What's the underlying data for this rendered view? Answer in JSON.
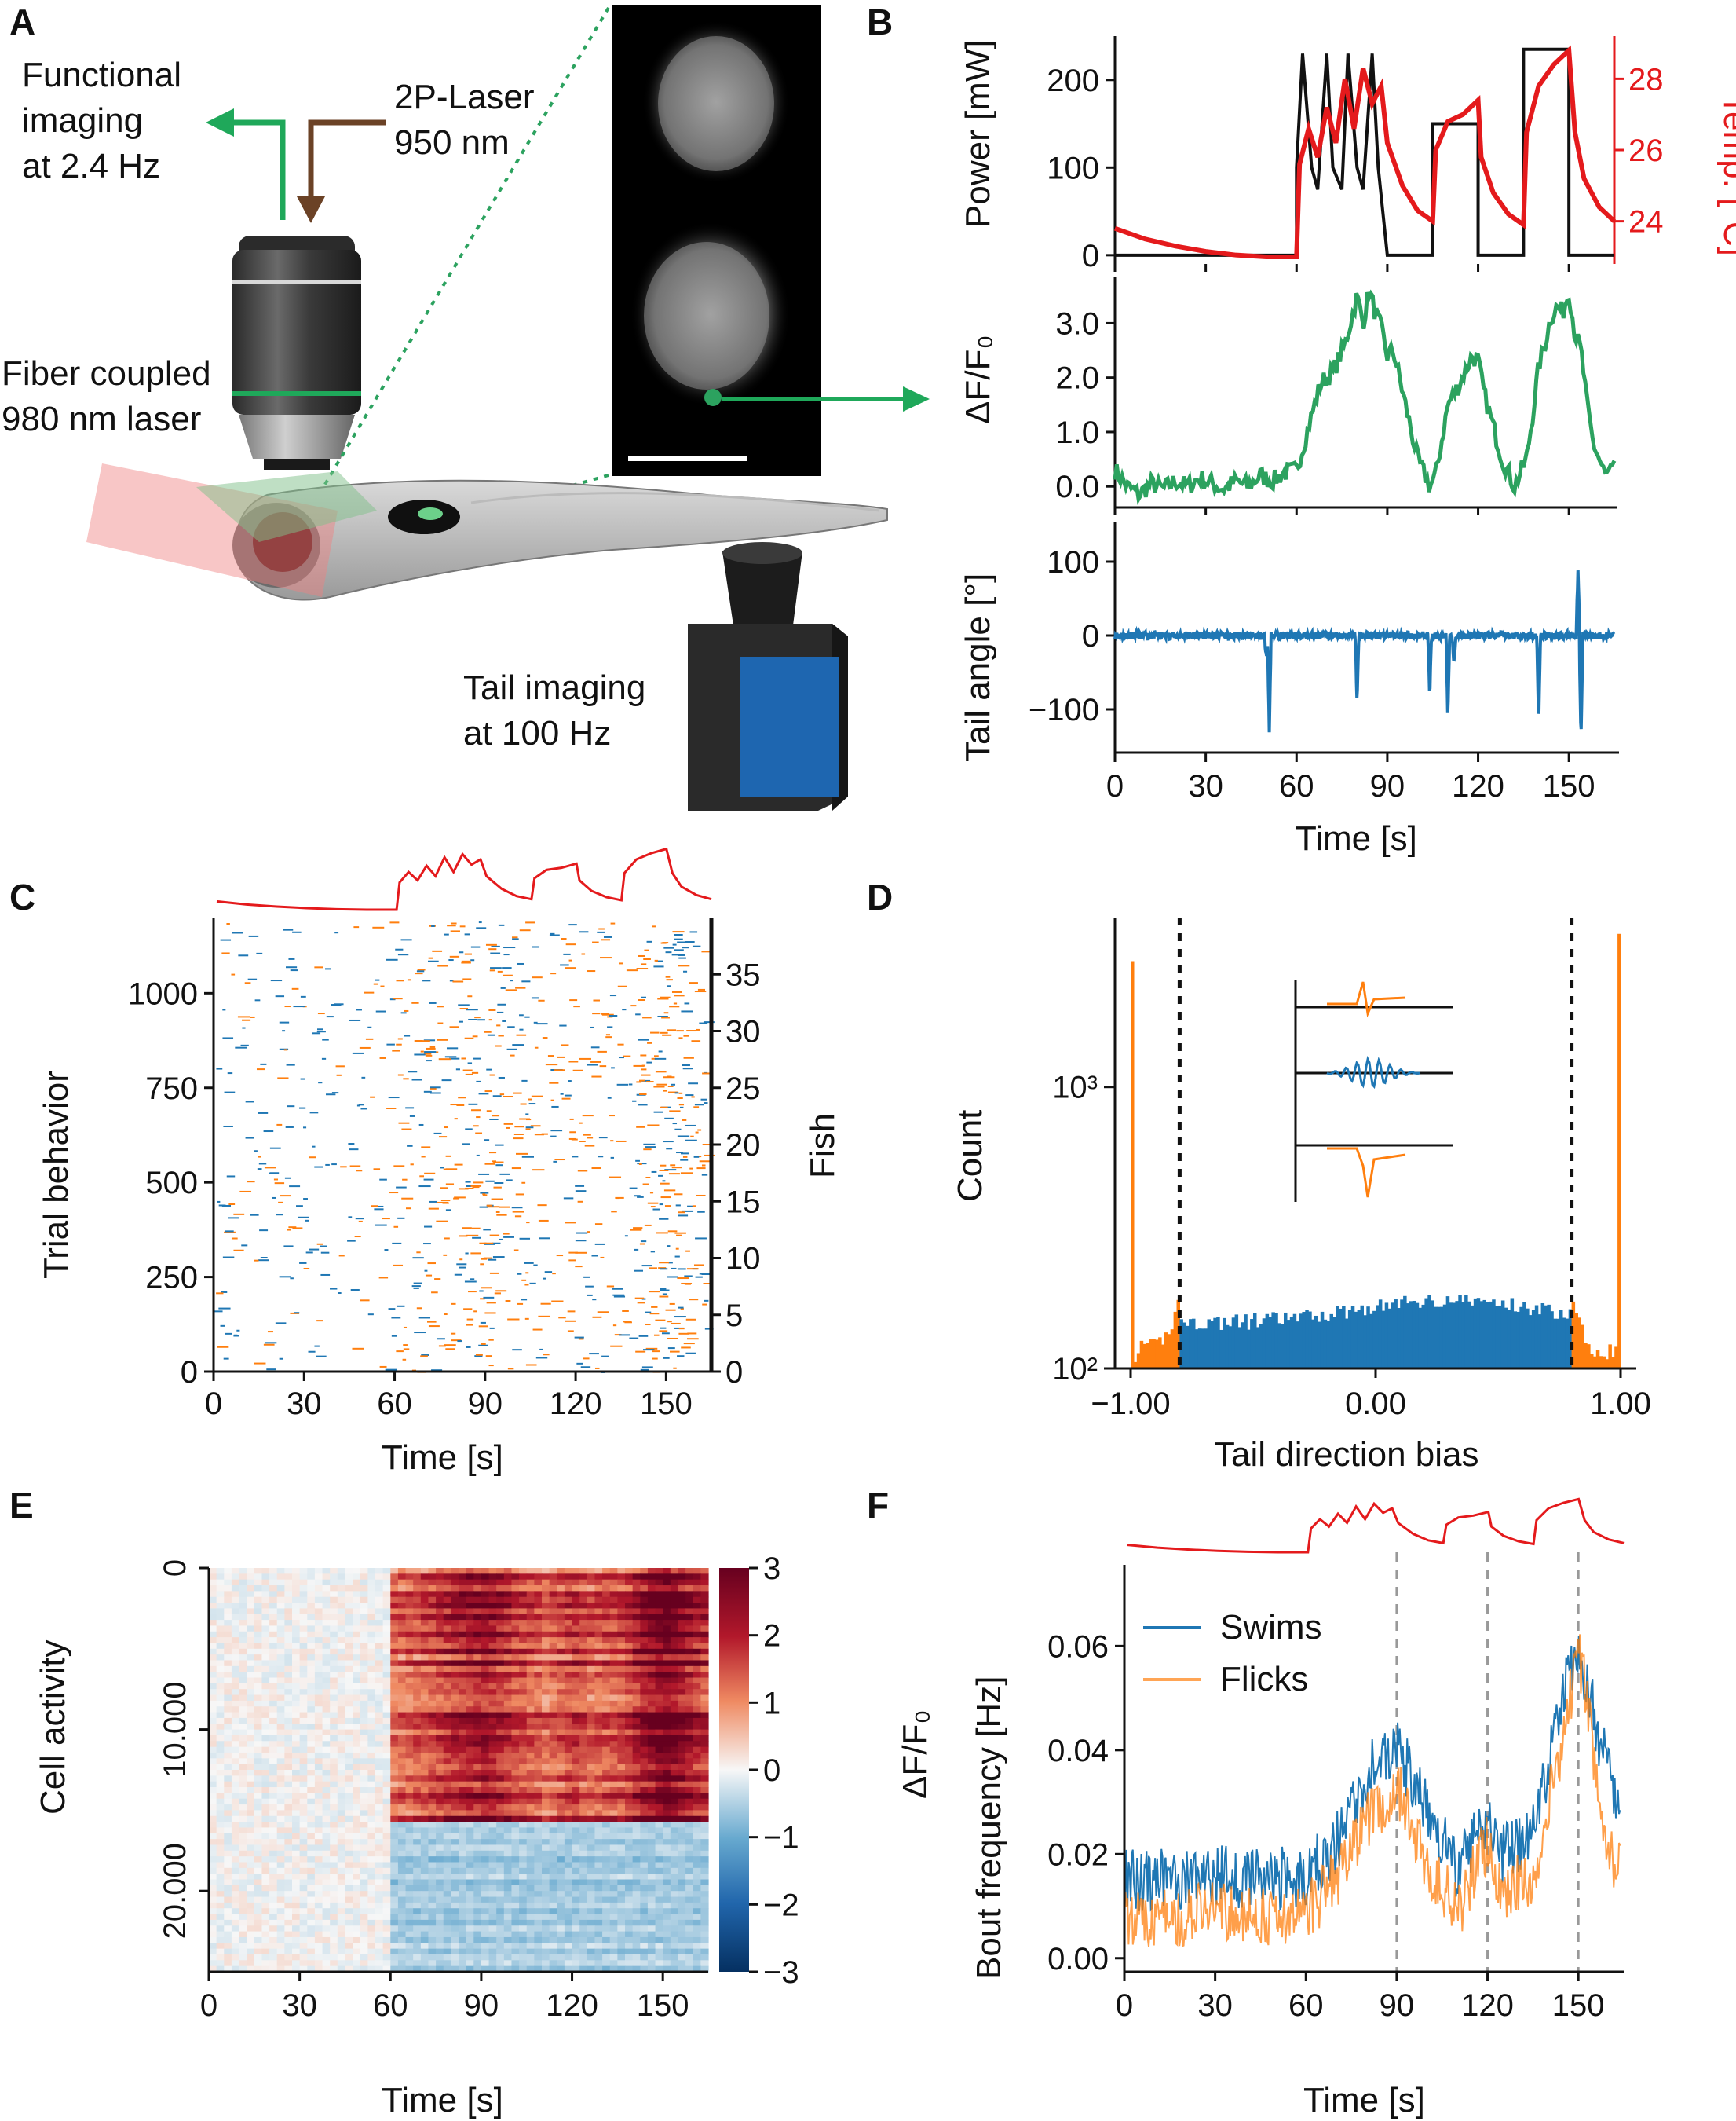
{
  "panels": {
    "A": {
      "label": "A",
      "functional_imaging": [
        "Functional",
        "imaging",
        "at 2.4 Hz"
      ],
      "laser_2p": [
        "2P-Laser",
        "950 nm"
      ],
      "fiber_laser": [
        "Fiber coupled",
        "980 nm laser"
      ],
      "tail_imaging": [
        "Tail imaging",
        "at 100 Hz"
      ]
    },
    "B": {
      "label": "B",
      "power_ylabel": "Power [mW]",
      "temp_ylabel": "Temp. [°C]",
      "dff_ylabel": "ΔF/F₀",
      "tail_ylabel": "Tail angle [°]",
      "xlabel": "Time [s]"
    },
    "C": {
      "label": "C",
      "ylabel_left": "Trial behavior",
      "ylabel_right": "Fish",
      "xlabel": "Time [s]"
    },
    "D": {
      "label": "D",
      "ylabel": "Count",
      "xlabel": "Tail direction bias"
    },
    "E": {
      "label": "E",
      "ylabel": "Cell activity",
      "colorbar_label": "ΔF/F₀",
      "xlabel": "Time [s]"
    },
    "F": {
      "label": "F",
      "ylabel": "Bout frequency [Hz]",
      "xlabel": "Time [s]"
    }
  },
  "colors": {
    "power": "#111111",
    "temperature": "#e41a1c",
    "dff": "#2ca25f",
    "tail": "#1f77b4",
    "swims": "#1f77b4",
    "flicks": "#ff7f0e",
    "green_arrow": "#1fa85a",
    "brown_arrow": "#6b4226"
  },
  "chart_data": [
    {
      "id": "B-power-temp",
      "type": "line",
      "xlim": [
        0,
        165
      ],
      "x_ticks": [
        "0",
        "30",
        "60",
        "90",
        "120",
        "150"
      ],
      "series": [
        {
          "name": "Power",
          "axis": "left",
          "unit": "mW",
          "x": [
            0,
            60,
            60,
            62,
            65,
            67,
            70,
            72,
            75,
            77,
            80,
            82,
            85,
            87,
            90,
            90,
            105,
            105,
            120,
            120,
            135,
            135,
            150,
            150,
            165
          ],
          "y": [
            0,
            0,
            100,
            230,
            100,
            75,
            230,
            100,
            75,
            230,
            100,
            75,
            230,
            100,
            0,
            0,
            0,
            150,
            150,
            0,
            0,
            235,
            235,
            0,
            0
          ]
        },
        {
          "name": "Temperature",
          "axis": "right",
          "unit": "°C",
          "x": [
            0,
            10,
            20,
            30,
            40,
            50,
            60,
            61,
            64,
            67,
            70,
            73,
            76,
            79,
            82,
            85,
            88,
            90,
            95,
            100,
            105,
            106,
            110,
            115,
            120,
            121,
            125,
            130,
            135,
            136,
            140,
            145,
            150,
            152,
            155,
            160,
            165
          ],
          "y": [
            23.8,
            23.5,
            23.3,
            23.15,
            23.05,
            23.0,
            23.0,
            25.6,
            26.6,
            25.8,
            27.2,
            26.2,
            28.0,
            26.6,
            28.3,
            27.3,
            27.8,
            26.2,
            25.0,
            24.3,
            24.0,
            26.0,
            26.8,
            27.0,
            27.4,
            25.8,
            24.8,
            24.2,
            23.9,
            26.5,
            27.8,
            28.4,
            28.8,
            26.5,
            25.2,
            24.4,
            24.0
          ]
        }
      ],
      "ylim_left": [
        -10,
        250
      ],
      "y_ticks_left": [
        "0",
        "100",
        "200"
      ],
      "ylim_right": [
        22.8,
        29.2
      ],
      "y_ticks_right": [
        "24",
        "26",
        "28"
      ]
    },
    {
      "id": "B-dff",
      "type": "line",
      "name": "ΔF/F₀",
      "xlim": [
        0,
        165
      ],
      "ylim": [
        -0.3,
        3.8
      ],
      "y_ticks": [
        "0.0",
        "1.0",
        "2.0",
        "3.0"
      ],
      "x": [
        0,
        4,
        8,
        12,
        16,
        20,
        24,
        28,
        32,
        36,
        40,
        44,
        48,
        52,
        56,
        60,
        64,
        68,
        72,
        76,
        80,
        82,
        84,
        86,
        88,
        90,
        92,
        96,
        100,
        104,
        106,
        110,
        114,
        118,
        120,
        122,
        124,
        128,
        132,
        136,
        138,
        140,
        142,
        144,
        146,
        148,
        150,
        152,
        154,
        156,
        158,
        162,
        165
      ],
      "y": [
        0.3,
        0.0,
        -0.15,
        0.05,
        -0.05,
        0.1,
        0.0,
        0.15,
        0.05,
        -0.05,
        0.1,
        0.0,
        0.2,
        0.1,
        0.25,
        0.3,
        1.1,
        1.9,
        2.1,
        2.6,
        3.5,
        3.0,
        3.6,
        3.2,
        2.9,
        2.4,
        2.5,
        1.5,
        0.5,
        0.0,
        0.2,
        1.5,
        1.9,
        2.4,
        2.3,
        1.7,
        1.3,
        0.5,
        0.0,
        0.5,
        1.3,
        2.2,
        2.6,
        3.1,
        3.3,
        3.2,
        3.6,
        2.8,
        2.5,
        1.5,
        0.8,
        0.2,
        0.3
      ]
    },
    {
      "id": "B-tail",
      "type": "line",
      "name": "Tail angle",
      "xlim": [
        0,
        165
      ],
      "ylim": [
        -150,
        150
      ],
      "y_ticks": [
        "100",
        "0",
        "−100"
      ],
      "events": [
        {
          "t": 51,
          "amp": -130
        },
        {
          "t": 50,
          "amp": -30
        },
        {
          "t": 80,
          "amp": -90
        },
        {
          "t": 104,
          "amp": -80
        },
        {
          "t": 110,
          "amp": -110
        },
        {
          "t": 140,
          "amp": -120
        },
        {
          "t": 153,
          "amp": 90
        },
        {
          "t": 154,
          "amp": -140
        },
        {
          "t": 112,
          "amp": -40
        }
      ]
    },
    {
      "id": "C-raster",
      "type": "heatmap",
      "xlim": [
        0,
        165
      ],
      "ylim": [
        0,
        1200
      ],
      "x_ticks": [
        "0",
        "30",
        "60",
        "90",
        "120",
        "150"
      ],
      "y_ticks_left": [
        "0",
        "250",
        "500",
        "750",
        "1000"
      ],
      "y_ticks_right": [
        "0",
        "5",
        "10",
        "15",
        "20",
        "25",
        "30",
        "35"
      ],
      "series": [
        {
          "name": "Swims",
          "color": "#1f77b4"
        },
        {
          "name": "Flicks",
          "color": "#ff7f0e"
        }
      ],
      "stimulus_trace": true
    },
    {
      "id": "D-hist",
      "type": "bar",
      "xlim": [
        -1.0,
        1.0
      ],
      "y_scale": "log",
      "ylim": [
        100,
        4000
      ],
      "x_ticks": [
        "−1.00",
        "0.00",
        "1.00"
      ],
      "y_ticks": [
        "10²",
        "10³"
      ],
      "thresholds": [
        -0.8,
        0.8
      ],
      "edge_values": {
        "left": 2800,
        "right": 3500
      },
      "middle_range": [
        140,
        200
      ]
    },
    {
      "id": "E-heatmap",
      "type": "heatmap",
      "xlim": [
        0,
        165
      ],
      "ylim": [
        25000,
        0
      ],
      "x_ticks": [
        "0",
        "30",
        "60",
        "90",
        "120",
        "150"
      ],
      "y_ticks": [
        "0",
        "10.000",
        "20.000"
      ],
      "colorbar_ticks": [
        "3",
        "2",
        "1",
        "0",
        "−1",
        "−2",
        "−3"
      ],
      "colorbar_range": [
        -3,
        3
      ],
      "split_row": 15500
    },
    {
      "id": "F-bout",
      "type": "line",
      "xlim": [
        0,
        165
      ],
      "ylim": [
        -0.002,
        0.075
      ],
      "x_ticks": [
        "0",
        "30",
        "60",
        "90",
        "120",
        "150"
      ],
      "y_ticks": [
        "0.00",
        "0.02",
        "0.04",
        "0.06"
      ],
      "legend": "top-left",
      "vlines": [
        90,
        120,
        150
      ],
      "series": [
        {
          "name": "Swims",
          "x": [
            0,
            15,
            30,
            45,
            60,
            70,
            80,
            90,
            100,
            110,
            120,
            125,
            135,
            145,
            150,
            155,
            160,
            165
          ],
          "y": [
            0.015,
            0.015,
            0.016,
            0.015,
            0.016,
            0.022,
            0.035,
            0.041,
            0.028,
            0.017,
            0.028,
            0.02,
            0.024,
            0.05,
            0.06,
            0.047,
            0.035,
            0.03
          ]
        },
        {
          "name": "Flicks",
          "x": [
            0,
            15,
            30,
            45,
            60,
            70,
            80,
            90,
            100,
            110,
            120,
            125,
            135,
            145,
            150,
            155,
            160,
            165
          ],
          "y": [
            0.008,
            0.008,
            0.009,
            0.008,
            0.009,
            0.015,
            0.027,
            0.033,
            0.018,
            0.009,
            0.022,
            0.013,
            0.016,
            0.042,
            0.06,
            0.04,
            0.022,
            0.015
          ]
        }
      ]
    }
  ]
}
